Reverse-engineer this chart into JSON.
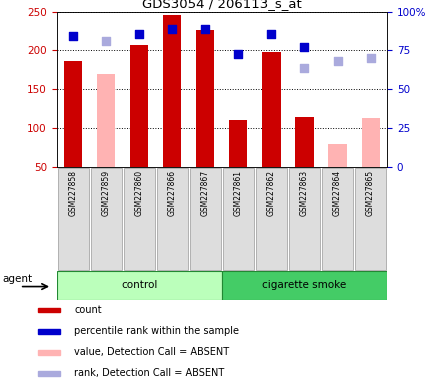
{
  "title": "GDS3054 / 206113_s_at",
  "samples": [
    "GSM227858",
    "GSM227859",
    "GSM227860",
    "GSM227866",
    "GSM227867",
    "GSM227861",
    "GSM227862",
    "GSM227863",
    "GSM227864",
    "GSM227865"
  ],
  "count_values": [
    186,
    null,
    207,
    246,
    226,
    111,
    198,
    114,
    null,
    null
  ],
  "count_absent_values": [
    null,
    170,
    null,
    null,
    null,
    null,
    null,
    null,
    80,
    113
  ],
  "rank_values": [
    218,
    null,
    221,
    228,
    227,
    196,
    221,
    205,
    null,
    null
  ],
  "rank_absent_values": [
    null,
    212,
    null,
    null,
    null,
    null,
    null,
    178,
    186,
    190
  ],
  "ylim_left": [
    50,
    250
  ],
  "ylim_right": [
    0,
    100
  ],
  "yticks_left": [
    50,
    100,
    150,
    200,
    250
  ],
  "yticks_right": [
    0,
    25,
    50,
    75,
    100
  ],
  "ytick_labels_right": [
    "0",
    "25",
    "50",
    "75",
    "100%"
  ],
  "count_color": "#cc0000",
  "count_absent_color": "#ffb3b3",
  "rank_color": "#0000cc",
  "rank_absent_color": "#aaaadd",
  "control_color": "#bbffbb",
  "smoke_color": "#44cc66",
  "legend_items": [
    "count",
    "percentile rank within the sample",
    "value, Detection Call = ABSENT",
    "rank, Detection Call = ABSENT"
  ],
  "tick_color_left": "#cc0000",
  "tick_color_right": "#0000cc"
}
